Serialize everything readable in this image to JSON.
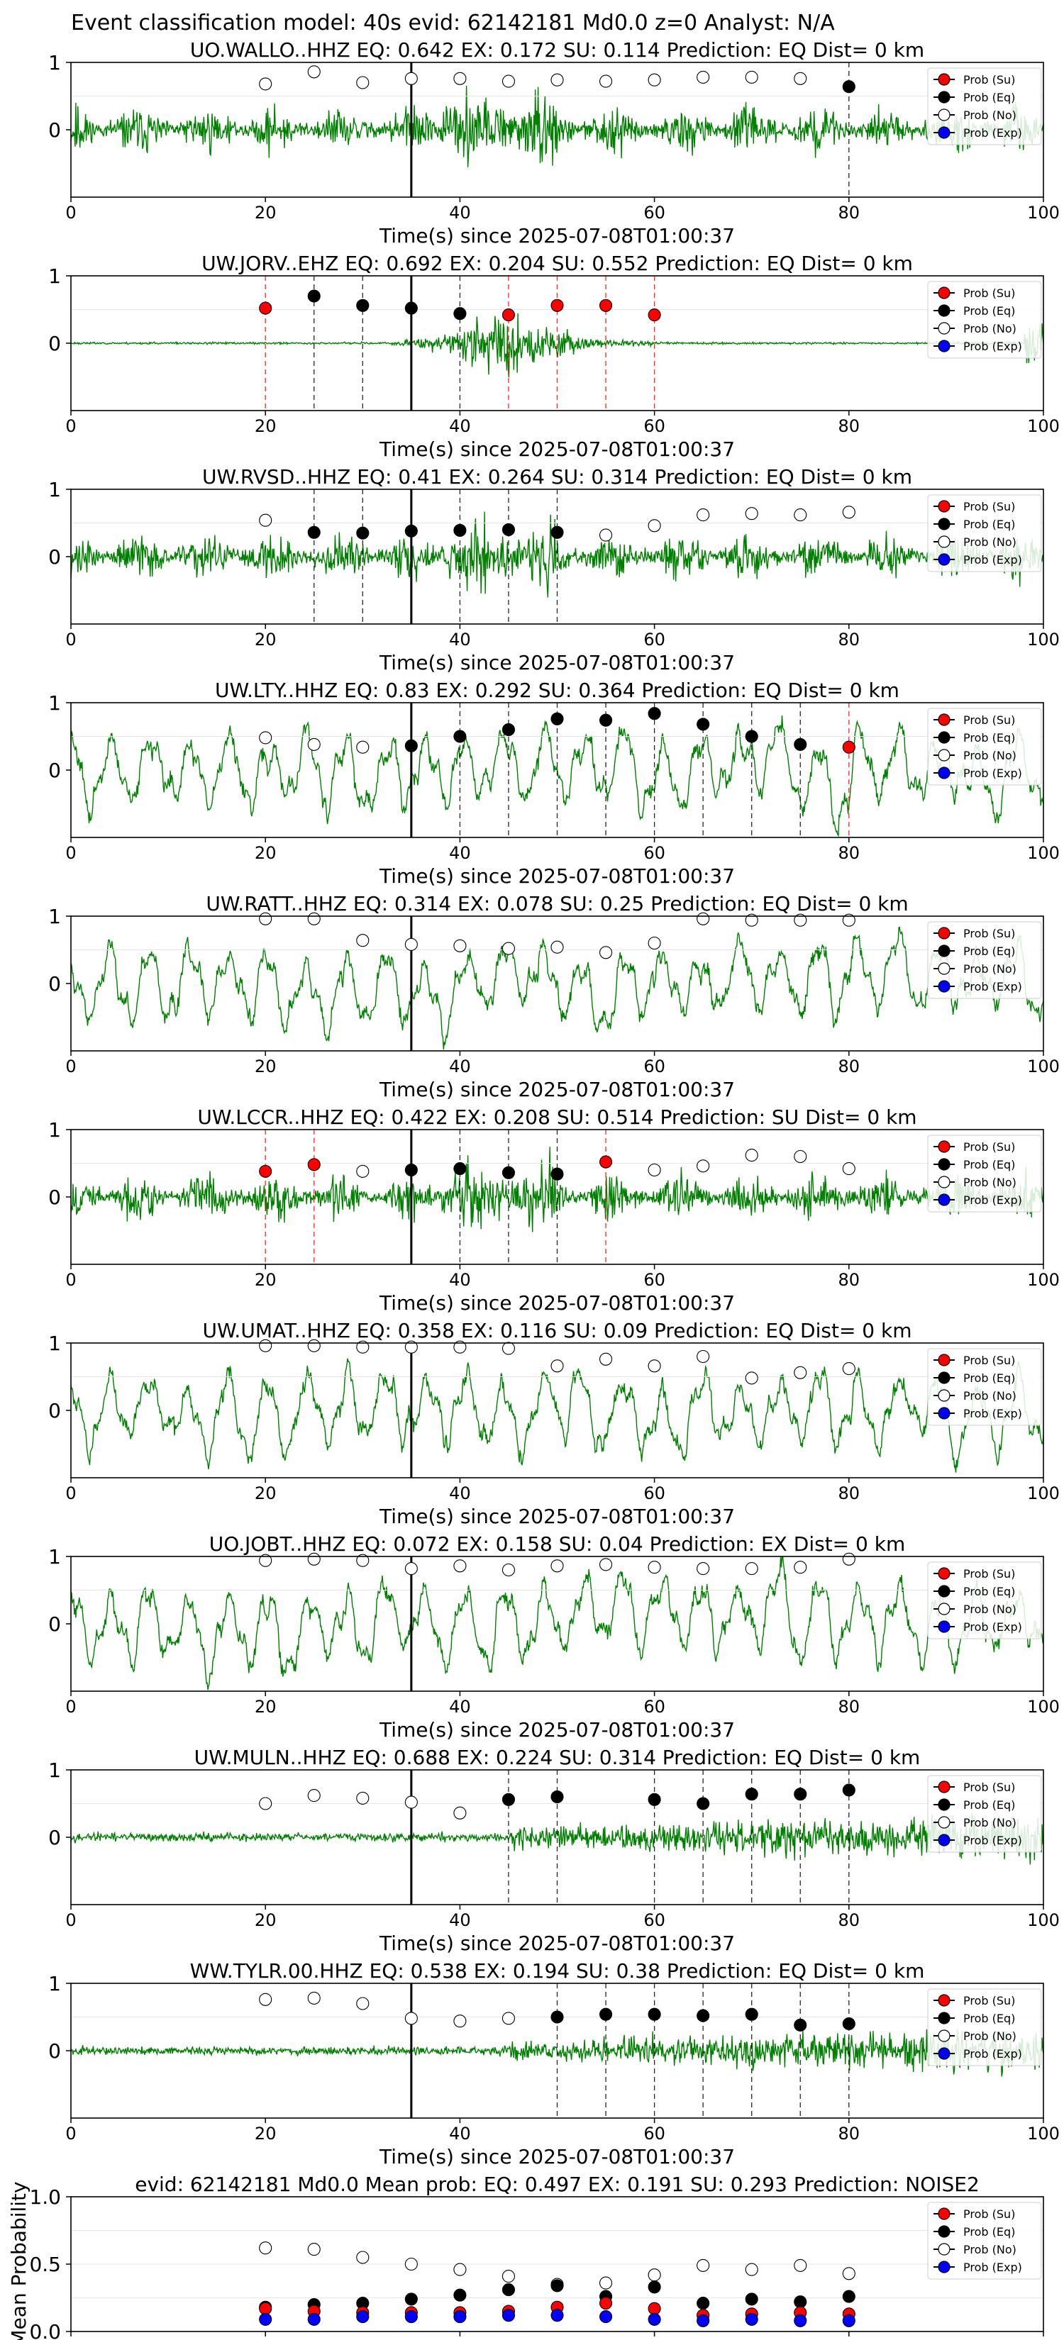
{
  "figure": {
    "suptitle": "Event classification model: 40s evid: 62142181 Md0.0 z=0 Analyst: N/A",
    "xlabel": "Time(s) since 2025-07-08T01:00:37",
    "legend": [
      "Prob (Su)",
      "Prob (Eq)",
      "Prob (No)",
      "Prob (Exp)"
    ],
    "colors": {
      "trace": "#008000",
      "su": "#ff0000",
      "eq": "#000000",
      "no": "#ffffff",
      "exp": "#0000ff",
      "su_line": "#ff0000",
      "eq_line": "#000000"
    }
  },
  "chart_data": [
    {
      "type": "line",
      "station": "UO.WALLO..HHZ",
      "title": "UO.WALLO..HHZ   EQ: 0.642  EX: 0.172  SU: 0.114   Prediction: EQ    Dist= 0 km",
      "xlim": [
        0,
        100
      ],
      "xticks": [
        0,
        20,
        40,
        60,
        80,
        100
      ],
      "yticks": [
        1,
        0
      ],
      "onset": 35,
      "trace_style": "noise",
      "points": [
        {
          "x": 20,
          "y": 0.68,
          "cls": "no"
        },
        {
          "x": 25,
          "y": 0.86,
          "cls": "no"
        },
        {
          "x": 30,
          "y": 0.7,
          "cls": "no"
        },
        {
          "x": 35,
          "y": 0.76,
          "cls": "no"
        },
        {
          "x": 40,
          "y": 0.76,
          "cls": "no"
        },
        {
          "x": 45,
          "y": 0.72,
          "cls": "no"
        },
        {
          "x": 50,
          "y": 0.74,
          "cls": "no"
        },
        {
          "x": 55,
          "y": 0.72,
          "cls": "no"
        },
        {
          "x": 60,
          "y": 0.74,
          "cls": "no"
        },
        {
          "x": 65,
          "y": 0.78,
          "cls": "no"
        },
        {
          "x": 70,
          "y": 0.78,
          "cls": "no"
        },
        {
          "x": 75,
          "y": 0.76,
          "cls": "no"
        },
        {
          "x": 80,
          "y": 0.64,
          "cls": "eq"
        }
      ]
    },
    {
      "type": "line",
      "station": "UW.JORV..EHZ",
      "title": "UW.JORV..EHZ   EQ: 0.692  EX: 0.204  SU: 0.552   Prediction: EQ    Dist= 0 km",
      "xlim": [
        0,
        100
      ],
      "xticks": [
        0,
        20,
        40,
        60,
        80,
        100
      ],
      "yticks": [
        1,
        0
      ],
      "onset": 35,
      "trace_style": "burst",
      "points": [
        {
          "x": 20,
          "y": 0.52,
          "cls": "su"
        },
        {
          "x": 25,
          "y": 0.7,
          "cls": "eq"
        },
        {
          "x": 30,
          "y": 0.56,
          "cls": "eq"
        },
        {
          "x": 35,
          "y": 0.52,
          "cls": "eq"
        },
        {
          "x": 40,
          "y": 0.44,
          "cls": "eq"
        },
        {
          "x": 45,
          "y": 0.42,
          "cls": "su"
        },
        {
          "x": 50,
          "y": 0.56,
          "cls": "su"
        },
        {
          "x": 55,
          "y": 0.56,
          "cls": "su"
        },
        {
          "x": 60,
          "y": 0.42,
          "cls": "su"
        }
      ]
    },
    {
      "type": "line",
      "station": "UW.RVSD..HHZ",
      "title": "UW.RVSD..HHZ   EQ: 0.41  EX: 0.264  SU: 0.314   Prediction: EQ    Dist= 0 km",
      "xlim": [
        0,
        100
      ],
      "xticks": [
        0,
        20,
        40,
        60,
        80,
        100
      ],
      "yticks": [
        1,
        0
      ],
      "onset": 35,
      "trace_style": "noise",
      "points": [
        {
          "x": 20,
          "y": 0.54,
          "cls": "no"
        },
        {
          "x": 25,
          "y": 0.36,
          "cls": "eq"
        },
        {
          "x": 30,
          "y": 0.35,
          "cls": "eq"
        },
        {
          "x": 35,
          "y": 0.38,
          "cls": "eq"
        },
        {
          "x": 40,
          "y": 0.39,
          "cls": "eq"
        },
        {
          "x": 45,
          "y": 0.4,
          "cls": "eq"
        },
        {
          "x": 50,
          "y": 0.36,
          "cls": "eq"
        },
        {
          "x": 55,
          "y": 0.32,
          "cls": "no"
        },
        {
          "x": 60,
          "y": 0.46,
          "cls": "no"
        },
        {
          "x": 65,
          "y": 0.62,
          "cls": "no"
        },
        {
          "x": 70,
          "y": 0.64,
          "cls": "no"
        },
        {
          "x": 75,
          "y": 0.62,
          "cls": "no"
        },
        {
          "x": 80,
          "y": 0.66,
          "cls": "no"
        }
      ]
    },
    {
      "type": "line",
      "station": "UW.LTY..HHZ",
      "title": "UW.LTY..HHZ   EQ: 0.83  EX: 0.292  SU: 0.364   Prediction: EQ    Dist= 0 km",
      "xlim": [
        0,
        100
      ],
      "xticks": [
        0,
        20,
        40,
        60,
        80,
        100
      ],
      "yticks": [
        1,
        0
      ],
      "onset": 35,
      "trace_style": "wave",
      "points": [
        {
          "x": 20,
          "y": 0.48,
          "cls": "no"
        },
        {
          "x": 25,
          "y": 0.38,
          "cls": "no"
        },
        {
          "x": 30,
          "y": 0.34,
          "cls": "no"
        },
        {
          "x": 35,
          "y": 0.36,
          "cls": "eq"
        },
        {
          "x": 40,
          "y": 0.5,
          "cls": "eq"
        },
        {
          "x": 45,
          "y": 0.6,
          "cls": "eq"
        },
        {
          "x": 50,
          "y": 0.76,
          "cls": "eq"
        },
        {
          "x": 55,
          "y": 0.74,
          "cls": "eq"
        },
        {
          "x": 60,
          "y": 0.84,
          "cls": "eq"
        },
        {
          "x": 65,
          "y": 0.68,
          "cls": "eq"
        },
        {
          "x": 70,
          "y": 0.5,
          "cls": "eq"
        },
        {
          "x": 75,
          "y": 0.38,
          "cls": "eq"
        },
        {
          "x": 80,
          "y": 0.34,
          "cls": "su"
        }
      ]
    },
    {
      "type": "line",
      "station": "UW.RATT..HHZ",
      "title": "UW.RATT..HHZ   EQ: 0.314  EX: 0.078  SU: 0.25   Prediction: EQ    Dist= 0 km",
      "xlim": [
        0,
        100
      ],
      "xticks": [
        0,
        20,
        40,
        60,
        80,
        100
      ],
      "yticks": [
        1,
        0
      ],
      "onset": 35,
      "trace_style": "wave",
      "points": [
        {
          "x": 20,
          "y": 0.96,
          "cls": "no"
        },
        {
          "x": 25,
          "y": 0.96,
          "cls": "no"
        },
        {
          "x": 30,
          "y": 0.64,
          "cls": "no"
        },
        {
          "x": 35,
          "y": 0.58,
          "cls": "no"
        },
        {
          "x": 40,
          "y": 0.56,
          "cls": "no"
        },
        {
          "x": 45,
          "y": 0.52,
          "cls": "no"
        },
        {
          "x": 50,
          "y": 0.54,
          "cls": "no"
        },
        {
          "x": 55,
          "y": 0.46,
          "cls": "no"
        },
        {
          "x": 60,
          "y": 0.6,
          "cls": "no"
        },
        {
          "x": 65,
          "y": 0.96,
          "cls": "no"
        },
        {
          "x": 70,
          "y": 0.94,
          "cls": "no"
        },
        {
          "x": 75,
          "y": 0.94,
          "cls": "no"
        },
        {
          "x": 80,
          "y": 0.94,
          "cls": "no"
        }
      ]
    },
    {
      "type": "line",
      "station": "UW.LCCR..HHZ",
      "title": "UW.LCCR..HHZ   EQ: 0.422  EX: 0.208  SU: 0.514   Prediction: SU    Dist= 0 km",
      "xlim": [
        0,
        100
      ],
      "xticks": [
        0,
        20,
        40,
        60,
        80,
        100
      ],
      "yticks": [
        1,
        0
      ],
      "onset": 35,
      "trace_style": "noise",
      "points": [
        {
          "x": 20,
          "y": 0.38,
          "cls": "su"
        },
        {
          "x": 25,
          "y": 0.48,
          "cls": "su"
        },
        {
          "x": 30,
          "y": 0.38,
          "cls": "no"
        },
        {
          "x": 35,
          "y": 0.4,
          "cls": "eq"
        },
        {
          "x": 40,
          "y": 0.42,
          "cls": "eq"
        },
        {
          "x": 45,
          "y": 0.36,
          "cls": "eq"
        },
        {
          "x": 50,
          "y": 0.34,
          "cls": "eq"
        },
        {
          "x": 55,
          "y": 0.52,
          "cls": "su"
        },
        {
          "x": 60,
          "y": 0.4,
          "cls": "no"
        },
        {
          "x": 65,
          "y": 0.46,
          "cls": "no"
        },
        {
          "x": 70,
          "y": 0.62,
          "cls": "no"
        },
        {
          "x": 75,
          "y": 0.6,
          "cls": "no"
        },
        {
          "x": 80,
          "y": 0.42,
          "cls": "no"
        }
      ]
    },
    {
      "type": "line",
      "station": "UW.UMAT..HHZ",
      "title": "UW.UMAT..HHZ   EQ: 0.358  EX: 0.116  SU: 0.09   Prediction: EQ    Dist= 0 km",
      "xlim": [
        0,
        100
      ],
      "xticks": [
        0,
        20,
        40,
        60,
        80,
        100
      ],
      "yticks": [
        1,
        0
      ],
      "onset": 35,
      "trace_style": "wave",
      "points": [
        {
          "x": 20,
          "y": 0.96,
          "cls": "no"
        },
        {
          "x": 25,
          "y": 0.96,
          "cls": "no"
        },
        {
          "x": 30,
          "y": 0.94,
          "cls": "no"
        },
        {
          "x": 35,
          "y": 0.94,
          "cls": "no"
        },
        {
          "x": 40,
          "y": 0.94,
          "cls": "no"
        },
        {
          "x": 45,
          "y": 0.92,
          "cls": "no"
        },
        {
          "x": 50,
          "y": 0.66,
          "cls": "no"
        },
        {
          "x": 55,
          "y": 0.76,
          "cls": "no"
        },
        {
          "x": 60,
          "y": 0.66,
          "cls": "no"
        },
        {
          "x": 65,
          "y": 0.8,
          "cls": "no"
        },
        {
          "x": 70,
          "y": 0.48,
          "cls": "no"
        },
        {
          "x": 75,
          "y": 0.56,
          "cls": "no"
        },
        {
          "x": 80,
          "y": 0.62,
          "cls": "no"
        }
      ]
    },
    {
      "type": "line",
      "station": "UO.JOBT..HHZ",
      "title": "UO.JOBT..HHZ   EQ: 0.072  EX: 0.158  SU: 0.04   Prediction: EX    Dist= 0 km",
      "xlim": [
        0,
        100
      ],
      "xticks": [
        0,
        20,
        40,
        60,
        80,
        100
      ],
      "yticks": [
        1,
        0
      ],
      "onset": 35,
      "trace_style": "wave",
      "points": [
        {
          "x": 20,
          "y": 0.94,
          "cls": "no"
        },
        {
          "x": 25,
          "y": 0.96,
          "cls": "no"
        },
        {
          "x": 30,
          "y": 0.94,
          "cls": "no"
        },
        {
          "x": 35,
          "y": 0.82,
          "cls": "no"
        },
        {
          "x": 40,
          "y": 0.86,
          "cls": "no"
        },
        {
          "x": 45,
          "y": 0.8,
          "cls": "no"
        },
        {
          "x": 50,
          "y": 0.86,
          "cls": "no"
        },
        {
          "x": 55,
          "y": 0.88,
          "cls": "no"
        },
        {
          "x": 60,
          "y": 0.84,
          "cls": "no"
        },
        {
          "x": 65,
          "y": 0.82,
          "cls": "no"
        },
        {
          "x": 70,
          "y": 0.82,
          "cls": "no"
        },
        {
          "x": 75,
          "y": 0.84,
          "cls": "no"
        },
        {
          "x": 80,
          "y": 0.96,
          "cls": "no"
        }
      ]
    },
    {
      "type": "line",
      "station": "UW.MULN..HHZ",
      "title": "UW.MULN..HHZ   EQ: 0.688  EX: 0.224  SU: 0.314   Prediction: EQ    Dist= 0 km",
      "xlim": [
        0,
        100
      ],
      "xticks": [
        0,
        20,
        40,
        60,
        80,
        100
      ],
      "yticks": [
        1,
        0
      ],
      "onset": 35,
      "trace_style": "late",
      "points": [
        {
          "x": 20,
          "y": 0.5,
          "cls": "no"
        },
        {
          "x": 25,
          "y": 0.62,
          "cls": "no"
        },
        {
          "x": 30,
          "y": 0.58,
          "cls": "no"
        },
        {
          "x": 35,
          "y": 0.52,
          "cls": "no"
        },
        {
          "x": 40,
          "y": 0.36,
          "cls": "no"
        },
        {
          "x": 45,
          "y": 0.56,
          "cls": "eq"
        },
        {
          "x": 50,
          "y": 0.6,
          "cls": "eq"
        },
        {
          "x": 60,
          "y": 0.56,
          "cls": "eq"
        },
        {
          "x": 65,
          "y": 0.5,
          "cls": "eq"
        },
        {
          "x": 70,
          "y": 0.64,
          "cls": "eq"
        },
        {
          "x": 75,
          "y": 0.64,
          "cls": "eq"
        },
        {
          "x": 80,
          "y": 0.7,
          "cls": "eq"
        }
      ]
    },
    {
      "type": "line",
      "station": "WW.TYLR.00.HHZ",
      "title": "WW.TYLR.00.HHZ   EQ: 0.538  EX: 0.194  SU: 0.38   Prediction: EQ    Dist= 0 km",
      "xlim": [
        0,
        100
      ],
      "xticks": [
        0,
        20,
        40,
        60,
        80,
        100
      ],
      "yticks": [
        1,
        0
      ],
      "onset": 35,
      "trace_style": "late",
      "points": [
        {
          "x": 20,
          "y": 0.76,
          "cls": "no"
        },
        {
          "x": 25,
          "y": 0.78,
          "cls": "no"
        },
        {
          "x": 30,
          "y": 0.7,
          "cls": "no"
        },
        {
          "x": 35,
          "y": 0.48,
          "cls": "no"
        },
        {
          "x": 40,
          "y": 0.44,
          "cls": "no"
        },
        {
          "x": 45,
          "y": 0.48,
          "cls": "no"
        },
        {
          "x": 50,
          "y": 0.5,
          "cls": "eq"
        },
        {
          "x": 55,
          "y": 0.54,
          "cls": "eq"
        },
        {
          "x": 60,
          "y": 0.54,
          "cls": "eq"
        },
        {
          "x": 65,
          "y": 0.52,
          "cls": "eq"
        },
        {
          "x": 70,
          "y": 0.54,
          "cls": "eq"
        },
        {
          "x": 75,
          "y": 0.38,
          "cls": "eq"
        },
        {
          "x": 80,
          "y": 0.4,
          "cls": "eq"
        }
      ]
    },
    {
      "type": "scatter",
      "station": "mean",
      "title": "evid: 62142181   Md0.0   Mean prob:   EQ: 0.497  EX: 0.191  SU: 0.293   Prediction: NOISE2",
      "ylabel": "Mean Probability",
      "xlim": [
        0,
        100
      ],
      "ylim": [
        0,
        1
      ],
      "xticks": [
        0,
        20,
        40,
        60,
        80,
        100
      ],
      "yticks": [
        0.0,
        0.5,
        1.0
      ],
      "ytick_labels": [
        "0.0",
        "0.5",
        "1.0"
      ],
      "x": [
        20,
        25,
        30,
        35,
        40,
        45,
        50,
        55,
        60,
        65,
        70,
        75,
        80
      ],
      "series": [
        {
          "name": "Prob (No)",
          "cls": "no",
          "values": [
            0.62,
            0.61,
            0.55,
            0.5,
            0.46,
            0.41,
            0.35,
            0.36,
            0.42,
            0.49,
            0.46,
            0.49,
            0.43
          ]
        },
        {
          "name": "Prob (Eq)",
          "cls": "eq",
          "values": [
            0.18,
            0.2,
            0.21,
            0.24,
            0.27,
            0.31,
            0.34,
            0.26,
            0.33,
            0.21,
            0.24,
            0.22,
            0.26
          ]
        },
        {
          "name": "Prob (Su)",
          "cls": "su",
          "values": [
            0.17,
            0.15,
            0.14,
            0.14,
            0.14,
            0.15,
            0.18,
            0.21,
            0.17,
            0.12,
            0.13,
            0.14,
            0.13
          ]
        },
        {
          "name": "Prob (Exp)",
          "cls": "exp",
          "values": [
            0.09,
            0.09,
            0.11,
            0.11,
            0.11,
            0.12,
            0.12,
            0.11,
            0.09,
            0.08,
            0.09,
            0.08,
            0.08
          ]
        }
      ]
    }
  ]
}
